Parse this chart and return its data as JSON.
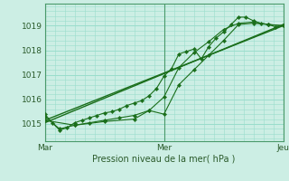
{
  "xlabel": "Pression niveau de la mer( hPa )",
  "bg_color": "#cceee4",
  "grid_color": "#99ddcc",
  "line_color": "#1a6e1a",
  "spine_color": "#4a9a6a",
  "ylim": [
    1014.3,
    1019.9
  ],
  "xlim": [
    0,
    96
  ],
  "xtick_positions": [
    0,
    48,
    96
  ],
  "xtick_labels": [
    "Mar",
    "Mer",
    "Jeu"
  ],
  "ytick_positions": [
    1015,
    1016,
    1017,
    1018,
    1019
  ],
  "ytick_labels": [
    "1015",
    "1016",
    "1017",
    "1018",
    "1019"
  ],
  "series1_x": [
    0,
    3,
    6,
    9,
    12,
    15,
    18,
    21,
    24,
    27,
    30,
    33,
    36,
    39,
    42,
    45,
    48,
    51,
    54,
    57,
    60,
    63,
    66,
    69,
    72,
    75,
    78,
    81,
    84,
    87,
    90,
    93,
    96
  ],
  "series1_y": [
    1015.4,
    1015.05,
    1014.75,
    1014.85,
    1015.05,
    1015.15,
    1015.25,
    1015.35,
    1015.45,
    1015.5,
    1015.6,
    1015.75,
    1015.85,
    1015.95,
    1016.15,
    1016.45,
    1016.95,
    1017.25,
    1017.85,
    1017.95,
    1018.05,
    1017.65,
    1018.15,
    1018.5,
    1018.75,
    1019.05,
    1019.35,
    1019.35,
    1019.2,
    1019.1,
    1019.05,
    1018.95,
    1019.0
  ],
  "series2_x": [
    0,
    6,
    12,
    18,
    24,
    30,
    36,
    42,
    48,
    54,
    60,
    66,
    72,
    78,
    84,
    90,
    96
  ],
  "series2_y": [
    1015.3,
    1014.8,
    1014.95,
    1015.05,
    1015.15,
    1015.25,
    1015.35,
    1015.55,
    1016.1,
    1017.3,
    1017.9,
    1018.35,
    1018.85,
    1019.1,
    1019.15,
    1019.05,
    1019.0
  ],
  "series3_x": [
    0,
    12,
    24,
    36,
    42,
    48,
    54,
    60,
    66,
    72,
    78,
    84,
    90,
    96
  ],
  "series3_y": [
    1015.15,
    1014.95,
    1015.1,
    1015.2,
    1015.55,
    1015.4,
    1016.6,
    1017.2,
    1017.8,
    1018.4,
    1019.05,
    1019.1,
    1019.05,
    1019.0
  ],
  "trend1_x": [
    0,
    96
  ],
  "trend1_y": [
    1015.05,
    1019.05
  ],
  "trend2_x": [
    0,
    96
  ],
  "trend2_y": [
    1015.15,
    1019.0
  ]
}
